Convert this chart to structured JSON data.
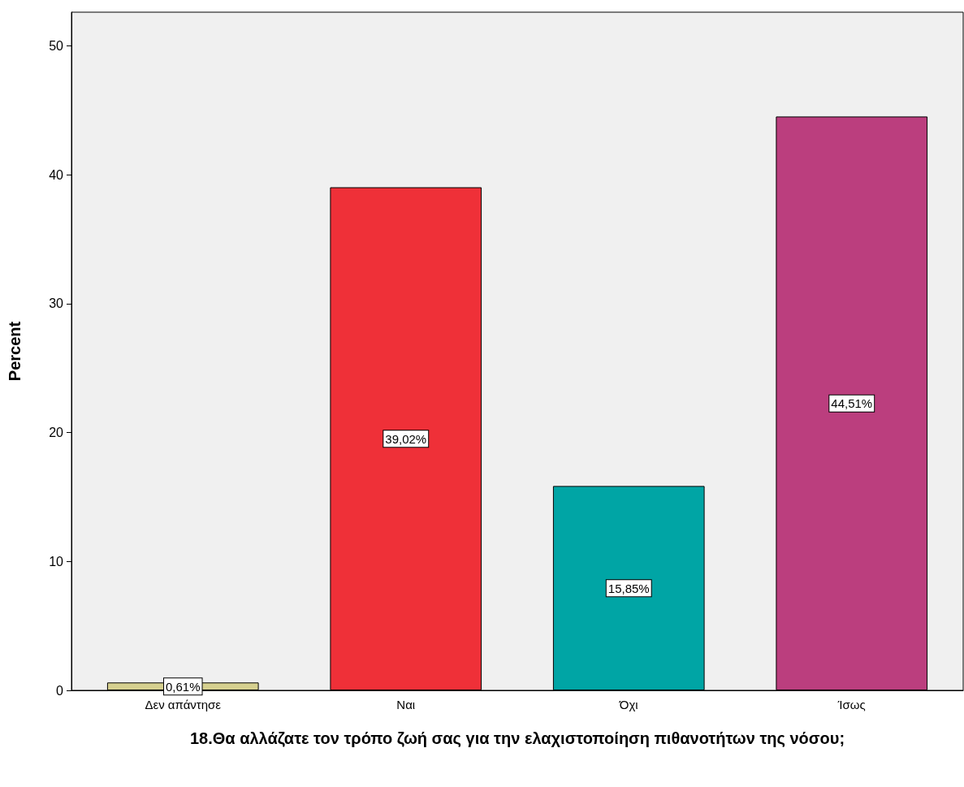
{
  "chart_data": {
    "type": "bar",
    "categories": [
      "Δεν απάντησε",
      "Ναι",
      "Όχι",
      "Ίσως"
    ],
    "values": [
      0.61,
      39.02,
      15.85,
      44.51
    ],
    "colors": [
      "#d6d08f",
      "#ef3038",
      "#00a5a5",
      "#bb3e7e"
    ],
    "value_labels": [
      "0,61%",
      "39,02%",
      "15,85%",
      "44,51%"
    ],
    "xlabel": "18.Θα αλλάζατε τον τρόπο ζωή σας για την ελαχιστοποίηση πιθανοτήτων της νόσου;",
    "ylabel": "Percent",
    "ylim": [
      0,
      52.6
    ],
    "yticks": [
      0,
      10,
      20,
      30,
      40,
      50
    ],
    "grid": false
  }
}
